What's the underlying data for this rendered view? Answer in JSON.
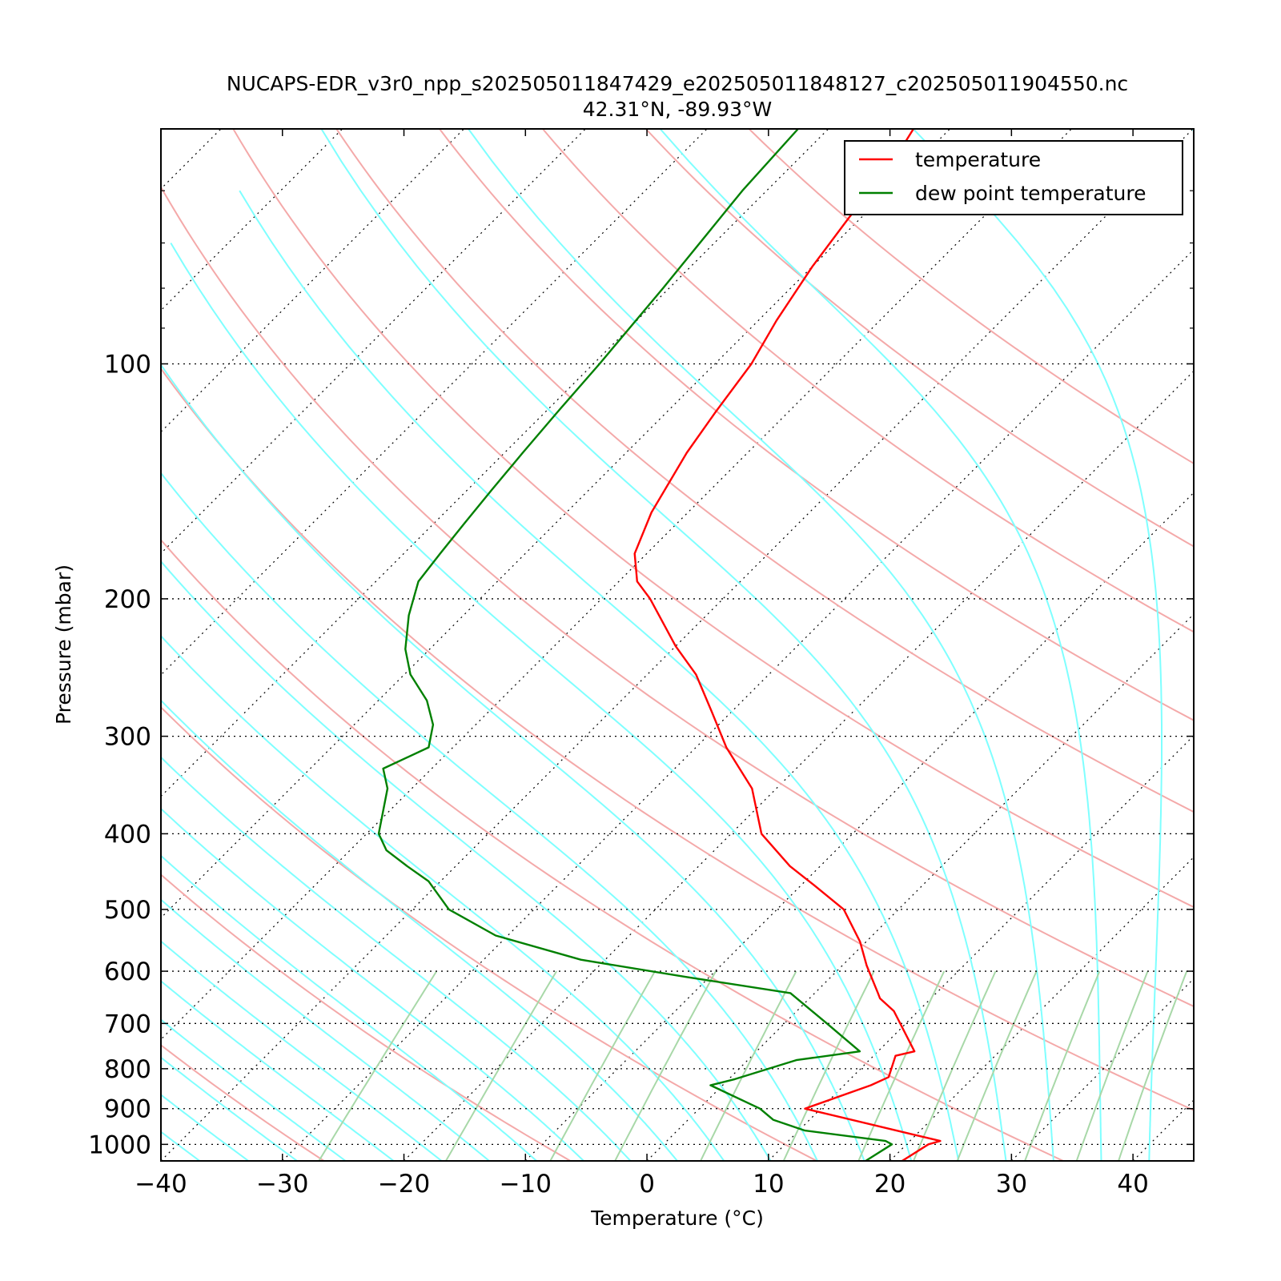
{
  "chart_data": {
    "type": "line",
    "title": "NUCAPS-EDR_v3r0_npp_s202505011847429_e202505011848127_c202505011904550.nc",
    "subtitle": "42.31°N, -89.93°W",
    "xlabel": "Temperature (°C)",
    "ylabel": "Pressure (mbar)",
    "xlim": [
      -40,
      45
    ],
    "ylim": [
      1050,
      50
    ],
    "y_scale": "log",
    "skew": true,
    "grid": true,
    "legend_position": "top-right",
    "x_ticks": [
      -40,
      -30,
      -20,
      -10,
      0,
      10,
      20,
      30,
      40
    ],
    "x_tick_labels": [
      "−40",
      "−30",
      "−20",
      "−10",
      "0",
      "10",
      "20",
      "30",
      "40"
    ],
    "y_ticks": [
      100,
      200,
      300,
      400,
      500,
      600,
      700,
      800,
      900,
      1000
    ],
    "y_tick_labels": [
      "100",
      "200",
      "300",
      "400",
      "500",
      "600",
      "700",
      "800",
      "900",
      "1000"
    ],
    "series": [
      {
        "name": "temperature",
        "color": "#ff0000",
        "pressure": [
          1050,
          1000,
          990,
          900,
          840,
          820,
          770,
          760,
          675,
          650,
          640,
          590,
          550,
          500,
          465,
          440,
          400,
          350,
          310,
          280,
          250,
          230,
          200,
          190,
          175,
          155,
          130,
          115,
          100,
          88,
          75,
          65,
          55,
          50
        ],
        "values": [
          21.0,
          21.8,
          22.5,
          8.7,
          12.2,
          13.0,
          11.8,
          13.0,
          8.0,
          5.8,
          5.2,
          2.0,
          -0.5,
          -4.5,
          -9.0,
          -12.5,
          -17.5,
          -22.0,
          -27.5,
          -31.5,
          -36.0,
          -40.0,
          -46.0,
          -48.5,
          -51.0,
          -53.0,
          -55.0,
          -56.0,
          -57.0,
          -58.5,
          -60.0,
          -61.0,
          -62.0,
          -63.0
        ]
      },
      {
        "name": "dew point temperature",
        "color": "#008000",
        "pressure": [
          1050,
          1000,
          990,
          960,
          930,
          900,
          840,
          825,
          780,
          760,
          700,
          640,
          610,
          580,
          540,
          500,
          460,
          440,
          420,
          400,
          350,
          330,
          310,
          290,
          270,
          250,
          232,
          210,
          190,
          175,
          160,
          145,
          130,
          115,
          100,
          80,
          60,
          50
        ],
        "values": [
          18.0,
          18.8,
          18.0,
          10.5,
          7.0,
          5.0,
          -1.0,
          0.5,
          4.0,
          8.5,
          3.5,
          -2.0,
          -12.0,
          -22.0,
          -31.0,
          -37.0,
          -41.0,
          -44.0,
          -47.0,
          -49.0,
          -52.0,
          -54.0,
          -52.0,
          -53.5,
          -56.0,
          -59.5,
          -62.0,
          -64.5,
          -66.5,
          -67.0,
          -67.5,
          -68.0,
          -68.5,
          -69.0,
          -69.5,
          -70.5,
          -72.0,
          -72.5
        ]
      }
    ],
    "background_lines": {
      "isotherm_color": "#000000",
      "dry_adiabat_color": "#f4a9a9",
      "moist_adiabat_color": "#7fffff",
      "mixing_ratio_color": "#a8d8a8"
    }
  }
}
